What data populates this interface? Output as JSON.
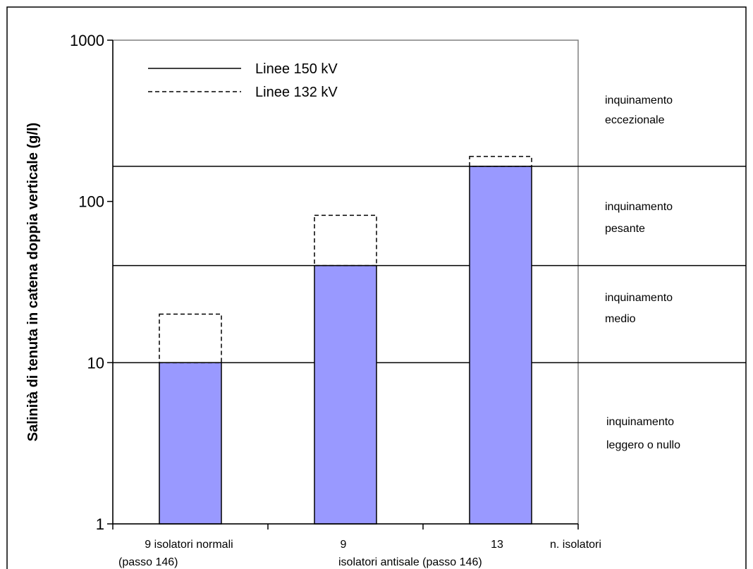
{
  "chart_data": {
    "type": "bar",
    "scale": "log",
    "ylabel": "Salinità di tenuta in catena doppia verticale (g/l)",
    "xlabel": "n. isolatori",
    "ylim": [
      1,
      1000
    ],
    "yticks": [
      "1",
      "10",
      "100",
      "1000"
    ],
    "categories": [
      {
        "line1": "9 isolatori normali",
        "line2": "(passo 146)"
      },
      {
        "line1": "9",
        "line2": ""
      },
      {
        "line1": "13",
        "line2": ""
      }
    ],
    "group_label": "isolatori antisale (passo 146)",
    "series": [
      {
        "name": "Linee 150 kV",
        "style": "solid",
        "color": "#9999ff",
        "values": [
          10,
          40,
          165
        ]
      },
      {
        "name": "Linee 132 kV",
        "style": "dashed",
        "values": [
          20,
          82,
          190
        ]
      }
    ],
    "thresholds": [
      10,
      40,
      165
    ],
    "zones": [
      {
        "line1": "inquinamento",
        "line2": "eccezionale"
      },
      {
        "line1": "inquinamento",
        "line2": "pesante"
      },
      {
        "line1": "inquinamento",
        "line2": "medio"
      },
      {
        "line1": "inquinamento",
        "line2": "leggero o nullo"
      }
    ],
    "legend_position": "top-left"
  }
}
